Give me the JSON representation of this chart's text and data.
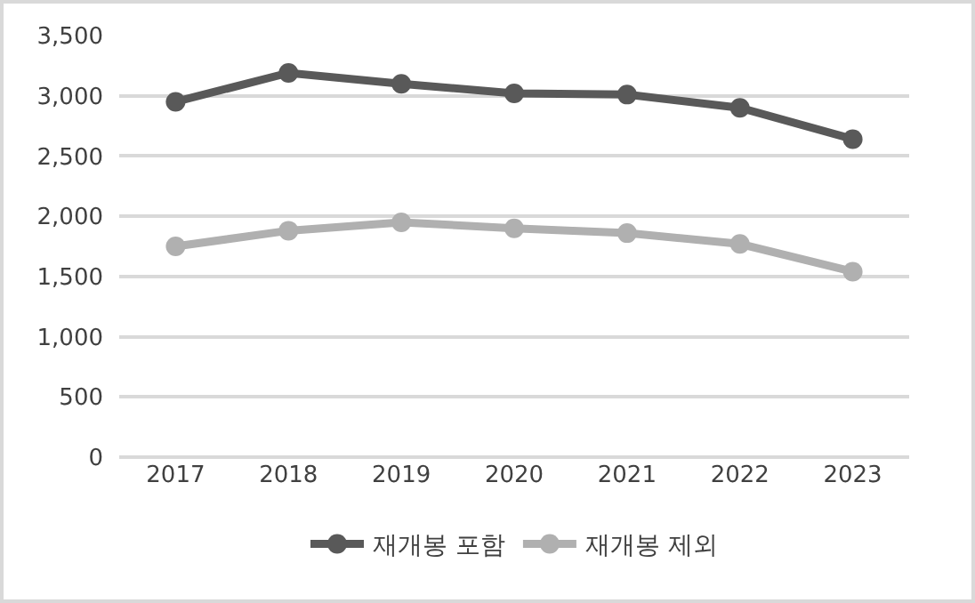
{
  "chart_data": {
    "type": "line",
    "categories": [
      "2017",
      "2018",
      "2019",
      "2020",
      "2021",
      "2022",
      "2023"
    ],
    "series": [
      {
        "name": "재개봉 포함",
        "color": "#595959",
        "values": [
          2950,
          3190,
          3100,
          3020,
          3010,
          2900,
          2640
        ]
      },
      {
        "name": "재개봉 제외",
        "color": "#b0b0b0",
        "values": [
          1750,
          1880,
          1950,
          1900,
          1860,
          1770,
          1540
        ]
      }
    ],
    "ylim": [
      0,
      3500
    ],
    "yticks": [
      0,
      {
        "value": 500,
        "label": "500"
      },
      {
        "value": 1000,
        "label": "1,000"
      },
      {
        "value": 1500,
        "label": "1,500"
      },
      {
        "value": 2000,
        "label": "2,000"
      },
      {
        "value": 2500,
        "label": "2,500"
      },
      {
        "value": 3000,
        "label": "3,000"
      },
      {
        "value": 3500,
        "label": "3,500"
      }
    ],
    "grid": "y",
    "legend": "bottom",
    "marker": "circle",
    "line_style": "solid"
  }
}
